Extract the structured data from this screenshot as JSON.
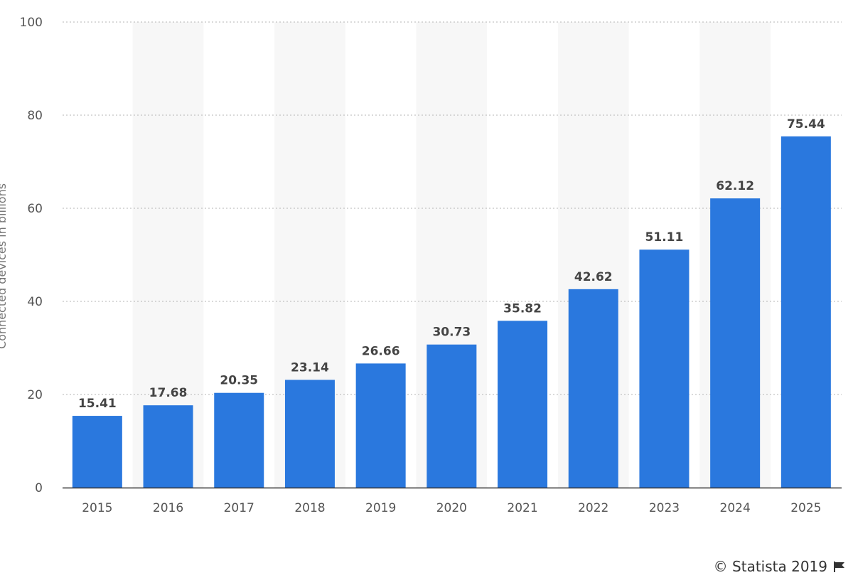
{
  "chart_data": {
    "type": "bar",
    "categories": [
      "2015",
      "2016",
      "2017",
      "2018",
      "2019",
      "2020",
      "2021",
      "2022",
      "2023",
      "2024",
      "2025"
    ],
    "values": [
      15.41,
      17.68,
      20.35,
      23.14,
      26.66,
      30.73,
      35.82,
      42.62,
      51.11,
      62.12,
      75.44
    ],
    "data_labels": [
      "15.41",
      "17.68",
      "20.35",
      "23.14",
      "26.66",
      "30.73",
      "35.82",
      "42.62",
      "51.11",
      "62.12",
      "75.44"
    ],
    "ylabel": "Connected devices in billions",
    "ylim": [
      0,
      100
    ],
    "y_ticks": [
      0,
      20,
      40,
      60,
      80,
      100
    ],
    "grid": true,
    "bar_color": "#2a78de",
    "band_color": "#f7f7f7"
  },
  "credit": {
    "text": "© Statista 2019",
    "icon": "flag-icon"
  }
}
